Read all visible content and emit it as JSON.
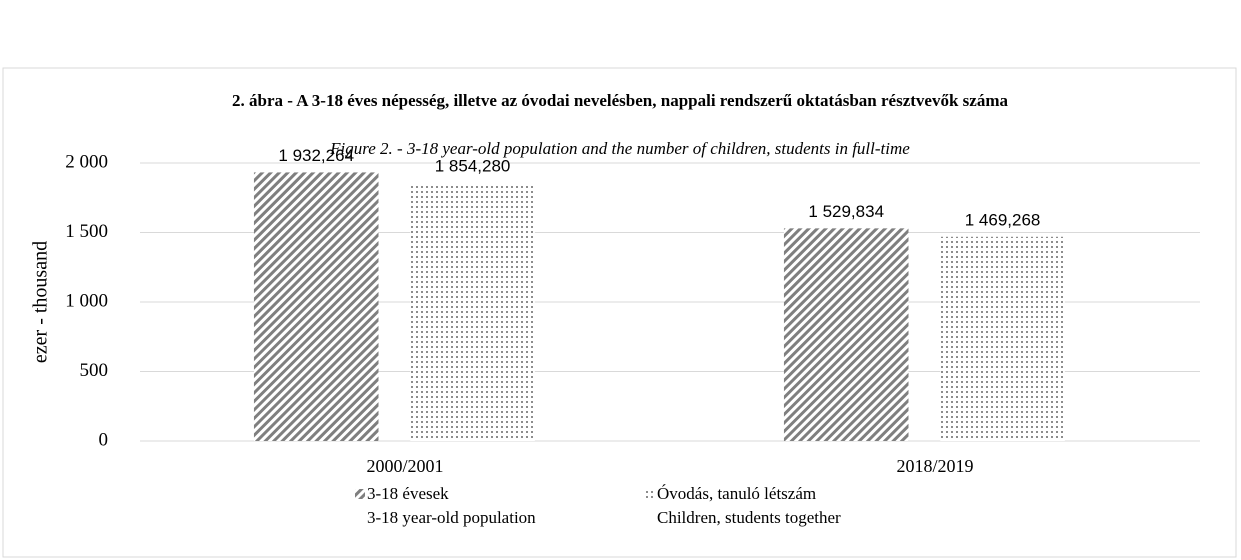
{
  "chart_data": {
    "type": "bar",
    "title": "2. ábra - A 3-18 éves népesség, illetve az óvodai nevelésben, nappali rendszerű oktatásban résztvevők száma",
    "subtitle": "Figure 2. - 3-18 year-old population and the number of children, students in full-time",
    "y_label": "ezer - thousand",
    "categories": [
      "2000/2001",
      "2018/2019"
    ],
    "series": [
      {
        "name": "3-18 évesek",
        "name_en": "3-18 year-old population",
        "color": "#7f7f7f",
        "pattern": "stripes",
        "values": [
          1932.264,
          1529.834
        ],
        "value_labels": [
          "1 932,264",
          "1 529,834"
        ]
      },
      {
        "name": "Óvodás, tanuló létszám",
        "name_en": "Children, students together",
        "color": "#8c8c8c",
        "pattern": "dots",
        "values": [
          1854.28,
          1469.268
        ],
        "value_labels": [
          "1 854,280",
          "1 469,268"
        ]
      }
    ],
    "ylim": [
      0,
      2000
    ],
    "yticks": [
      0,
      500,
      {
        "value": 1000,
        "label": "1 000"
      },
      {
        "value": 1500,
        "label": "1 500"
      },
      {
        "value": 2000,
        "label": "2 000"
      }
    ],
    "grid": true
  }
}
